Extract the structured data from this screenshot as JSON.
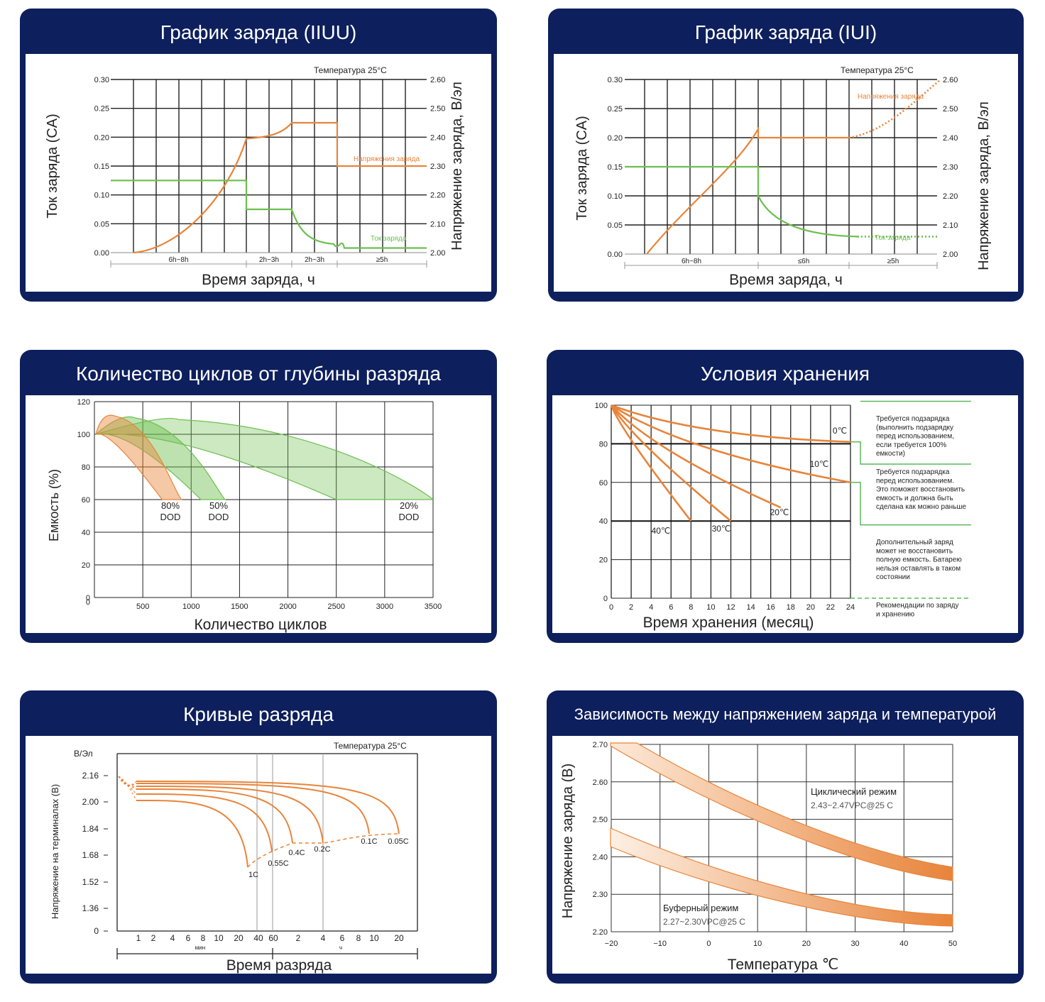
{
  "colors": {
    "header": "#0d1f5c",
    "orange": "#e8843a",
    "green": "#6cbf4f",
    "grid": "#222222"
  },
  "chart_data": [
    {
      "id": "iiuu",
      "type": "line",
      "title": "График заряда (IIUU)",
      "xlabel": "Время заряда, ч",
      "ylabel": "Ток заряда (CA)",
      "y2label": "Напряжение заряда, В/эл",
      "note": "Температура 25°C",
      "y_ticks": [
        "0.00",
        "0.05",
        "0.10",
        "0.15",
        "0.20",
        "0.25",
        "0.30"
      ],
      "y2_ticks": [
        "2.00",
        "2.10",
        "2.20",
        "2.30",
        "2.40",
        "2.50",
        "2.60"
      ],
      "ylim": [
        0,
        0.3
      ],
      "y2lim": [
        2.0,
        2.6
      ],
      "phases": [
        "6h~8h",
        "2h~3h",
        "2h~3h",
        "≥5h"
      ],
      "series": [
        {
          "name": "Напряжения заряда",
          "axis": "right",
          "points": [
            [
              0,
              2.0
            ],
            [
              0.25,
              2.05
            ],
            [
              0.5,
              2.13
            ],
            [
              0.75,
              2.25
            ],
            [
              1.0,
              2.395
            ],
            [
              1.2,
              2.41
            ],
            [
              1.4,
              2.45
            ],
            [
              1.5,
              2.45
            ],
            [
              2.0,
              2.45
            ],
            [
              2.0,
              2.3
            ],
            [
              3.0,
              2.3
            ]
          ]
        },
        {
          "name": "Ток заряда",
          "axis": "left",
          "points": [
            [
              -0.2,
              0.125
            ],
            [
              1.0,
              0.125
            ],
            [
              1.0,
              0.075
            ],
            [
              1.4,
              0.075
            ],
            [
              1.5,
              0.04
            ],
            [
              1.7,
              0.02
            ],
            [
              2.0,
              0.015
            ],
            [
              3.0,
              0.008
            ]
          ]
        }
      ]
    },
    {
      "id": "iui",
      "type": "line",
      "title": "График заряда (IUI)",
      "xlabel": "Время заряда, ч",
      "ylabel": "Ток заряда (CA)",
      "y2label": "Напряжение заряда, В/эл",
      "note": "Температура 25°C",
      "y_ticks": [
        "0.00",
        "0.05",
        "0.10",
        "0.15",
        "0.20",
        "0.25",
        "0.30"
      ],
      "y2_ticks": [
        "2.00",
        "2.10",
        "2.20",
        "2.30",
        "2.40",
        "2.50",
        "2.60"
      ],
      "ylim": [
        0,
        0.3
      ],
      "y2lim": [
        2.0,
        2.6
      ],
      "phases": [
        "6h~8h",
        "≤6h",
        "≥5h"
      ],
      "series": [
        {
          "name": "Напряжения заряда",
          "axis": "right",
          "points": [
            [
              0,
              2.0
            ],
            [
              0.5,
              2.15
            ],
            [
              1.0,
              2.42
            ],
            [
              1.0,
              2.4
            ],
            [
              1.8,
              2.4
            ]
          ],
          "dotted": [
            [
              1.8,
              2.4
            ],
            [
              2.2,
              2.44
            ],
            [
              2.6,
              2.55
            ],
            [
              2.8,
              2.6
            ]
          ]
        },
        {
          "name": "Ток заряда",
          "axis": "left",
          "points": [
            [
              -0.3,
              0.15
            ],
            [
              1.0,
              0.15
            ],
            [
              1.0,
              0.1
            ],
            [
              1.3,
              0.05
            ],
            [
              1.6,
              0.035
            ],
            [
              2.0,
              0.03
            ]
          ],
          "dotted": [
            [
              2.0,
              0.03
            ],
            [
              2.8,
              0.03
            ]
          ]
        }
      ]
    },
    {
      "id": "cycles",
      "type": "area",
      "title": "Количество циклов от глубины разряда",
      "xlabel": "Количество циклов",
      "ylabel": "Емкость (%)",
      "x_ticks": [
        500,
        1000,
        1500,
        2000,
        2500,
        3000,
        3500
      ],
      "y_ticks": [
        0,
        20,
        40,
        60,
        80,
        100,
        120
      ],
      "xlim": [
        0,
        3500
      ],
      "ylim": [
        0,
        120
      ],
      "series": [
        {
          "name": "80% DOD",
          "peak": [
            150,
            111
          ],
          "end": [
            700,
            900
          ],
          "color": "orange"
        },
        {
          "name": "50% DOD",
          "peak": [
            350,
            110
          ],
          "end": [
            1100,
            1350
          ],
          "color": "green"
        },
        {
          "name": "20% DOD",
          "peak": [
            800,
            109
          ],
          "end": [
            2500,
            3500
          ],
          "color": "green"
        }
      ],
      "labels": [
        {
          "pct": "80%",
          "dod": "DOD"
        },
        {
          "pct": "50%",
          "dod": "DOD"
        },
        {
          "pct": "20%",
          "dod": "DOD"
        }
      ]
    },
    {
      "id": "storage",
      "type": "line",
      "title": "Условия хранения",
      "xlabel": "Время хранения (месяц)",
      "x_ticks": [
        0,
        2,
        4,
        6,
        8,
        10,
        12,
        14,
        16,
        18,
        20,
        22,
        24
      ],
      "y_ticks": [
        0,
        20,
        40,
        60,
        80,
        100
      ],
      "xlim": [
        0,
        24
      ],
      "ylim": [
        0,
        100
      ],
      "series": [
        {
          "name": "0℃",
          "end": [
            24,
            81
          ]
        },
        {
          "name": "10℃",
          "end": [
            24,
            60
          ]
        },
        {
          "name": "20℃",
          "end": [
            17,
            47
          ]
        },
        {
          "name": "30℃",
          "end": [
            12,
            40
          ]
        },
        {
          "name": "40℃",
          "end": [
            8,
            40
          ]
        }
      ],
      "zones": [
        "Требуется подзарядка (выполнить подзарядку перед использованием, если требуется 100% емкости)",
        "Требуется подзарядка перед использованием. Это поможет восстановить емкость и должна быть сделана как можно раньше",
        "Дополнительный заряд может не восстановить полную емкость. Батарею нельзя оставлять в таком состоянии",
        "Рекомендации по заряду и хранению"
      ]
    },
    {
      "id": "discharge",
      "type": "line",
      "title": "Кривые разряда",
      "xlabel": "Время разряда",
      "ylabel": "Напряжение на терминалах (В)",
      "yunit": "В/Эл",
      "note": "Температура 25°C",
      "y_ticks": [
        "0",
        "1.36",
        "1.52",
        "1.68",
        "1.84",
        "2.00",
        "2.16"
      ],
      "x_ticks": [
        "1",
        "2",
        "4",
        "6",
        "8",
        "10",
        "20",
        "40",
        "60",
        "2",
        "4",
        "6",
        "8",
        "10",
        "20"
      ],
      "x_units": [
        "мин",
        "ч"
      ],
      "series": [
        {
          "name": "1C",
          "start": 2.03,
          "end_x": 27,
          "end_v": 1.6
        },
        {
          "name": "0.55C",
          "start": 2.06,
          "end_x": 40,
          "end_v": 1.66
        },
        {
          "name": "0.4C",
          "start": 2.08,
          "end_x": 60,
          "end_v": 1.75
        },
        {
          "name": "0.2C",
          "start": 2.1,
          "end_x": 120,
          "end_v": 1.77
        },
        {
          "name": "0.1C",
          "start": 2.12,
          "end_x": 600,
          "end_v": 1.8
        },
        {
          "name": "0.05C",
          "start": 2.13,
          "end_x": 1200,
          "end_v": 1.81
        }
      ]
    },
    {
      "id": "temp",
      "type": "area",
      "title": "Зависимость между напряжением заряда и температурой",
      "xlabel": "Температура ℃",
      "ylabel": "Напряжение заряда (В)",
      "x_ticks": [
        "−20",
        "−10",
        "0",
        "10",
        "20",
        "30",
        "40",
        "50"
      ],
      "y_ticks": [
        "2.20",
        "2.30",
        "2.40",
        "2.50",
        "2.60",
        "2.70"
      ],
      "xlim": [
        -20,
        50
      ],
      "ylim": [
        2.2,
        2.7
      ],
      "series": [
        {
          "name": "Циклический режим",
          "label": "2.43~2.47VPC@25 C"
        },
        {
          "name": "Буферный режим",
          "label": "2.27~2.30VPC@25 C"
        }
      ]
    }
  ]
}
